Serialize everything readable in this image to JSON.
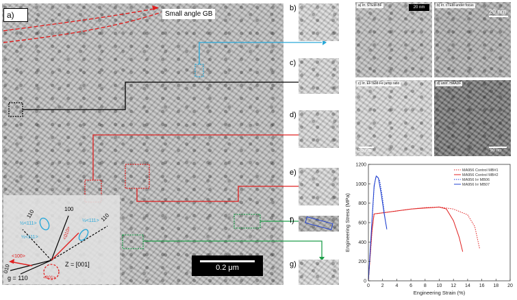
{
  "panel_a": {
    "label": "a)",
    "grain_boundary_label": "Small angle GB",
    "scalebar": "0.2 μm",
    "stereo": {
      "dir_110_top": "110",
      "dir_100": "100",
      "dir_010_bottom": "010",
      "half_111_a": "½<111>",
      "half_111_b": "½<111>",
      "half_111_c": "½<111>",
      "red_010": "<010>",
      "red_100": "<100>",
      "red_001": "<001>",
      "zone": "Z = [001]",
      "g_vector": "g = 110"
    }
  },
  "insets": [
    {
      "label": "b)"
    },
    {
      "label": "c)"
    },
    {
      "label": "d)"
    },
    {
      "label": "e)"
    },
    {
      "label": "f)"
    },
    {
      "label": "g)"
    }
  ],
  "micrographs": {
    "a": {
      "title": "a) irr. STEM-BF",
      "scale": "20 nm"
    },
    "b": {
      "title": "b) irr. cTEM-under focus",
      "scale": "20 nm"
    },
    "c": {
      "title": "c) irr. EFTEM-Fe jump ratio",
      "scale": "50 nm"
    },
    "d": {
      "title": "d) unirr. HAADF",
      "scale": "50 nm"
    }
  },
  "colors": {
    "red": "#e02020",
    "blue": "#2aa8d8",
    "green": "#1e9e4a",
    "black": "#000000"
  },
  "chart_data": {
    "type": "line",
    "xlabel": "Engineering Strain (%)",
    "ylabel": "Engineering Stress (MPa)",
    "xlim": [
      0,
      20
    ],
    "ylim": [
      0,
      1200
    ],
    "xticks": [
      0,
      2,
      4,
      6,
      8,
      10,
      12,
      14,
      16,
      18,
      20
    ],
    "yticks": [
      0,
      200,
      400,
      600,
      800,
      1000,
      1200
    ],
    "legend_position": "top-right",
    "series": [
      {
        "name": "MA956 Control MB#1",
        "color": "#e02020",
        "style": "dotted",
        "points": [
          [
            0,
            0
          ],
          [
            0.5,
            500
          ],
          [
            0.8,
            690
          ],
          [
            2,
            700
          ],
          [
            4,
            720
          ],
          [
            6,
            740
          ],
          [
            8,
            755
          ],
          [
            10,
            760
          ],
          [
            12,
            740
          ],
          [
            14,
            680
          ],
          [
            15,
            560
          ],
          [
            15.7,
            330
          ]
        ]
      },
      {
        "name": "MA956 Control MB#2",
        "color": "#e02020",
        "style": "solid",
        "points": [
          [
            0,
            0
          ],
          [
            0.5,
            520
          ],
          [
            0.8,
            690
          ],
          [
            2,
            700
          ],
          [
            4,
            720
          ],
          [
            6,
            740
          ],
          [
            8,
            750
          ],
          [
            10,
            760
          ],
          [
            11,
            740
          ],
          [
            12,
            620
          ],
          [
            12.8,
            450
          ],
          [
            13.3,
            300
          ]
        ]
      },
      {
        "name": "MA956 Irr MB06",
        "color": "#2040d0",
        "style": "dotted",
        "points": [
          [
            0,
            0
          ],
          [
            0.5,
            600
          ],
          [
            0.8,
            950
          ],
          [
            1.0,
            1060
          ],
          [
            1.3,
            1070
          ],
          [
            1.6,
            1030
          ],
          [
            2.0,
            850
          ],
          [
            2.4,
            620
          ],
          [
            2.6,
            540
          ]
        ]
      },
      {
        "name": "MA956 Irr MB07",
        "color": "#2040d0",
        "style": "solid",
        "points": [
          [
            0,
            0
          ],
          [
            0.5,
            620
          ],
          [
            0.8,
            980
          ],
          [
            1.1,
            1080
          ],
          [
            1.4,
            1060
          ],
          [
            1.8,
            900
          ],
          [
            2.2,
            700
          ],
          [
            2.6,
            530
          ]
        ]
      }
    ]
  }
}
